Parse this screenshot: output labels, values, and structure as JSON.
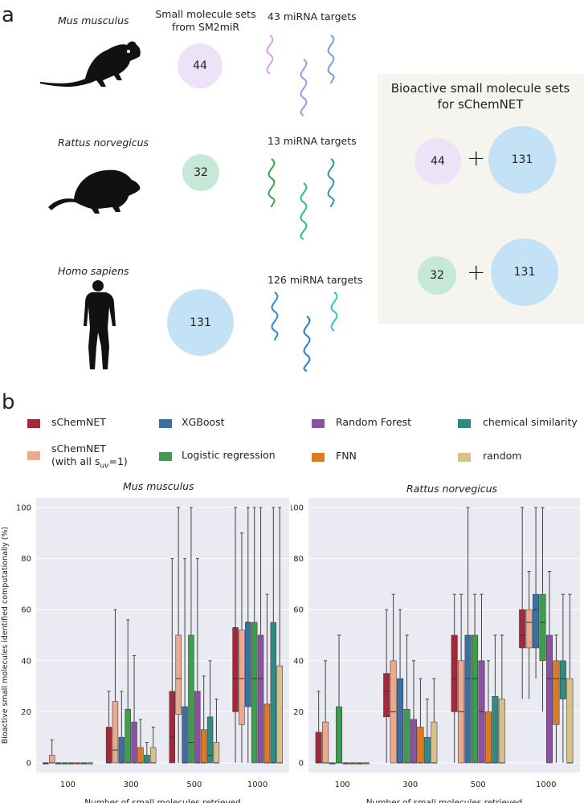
{
  "panel_a": {
    "label": "a",
    "header_sets": "Small molecule sets\nfrom SM2miR",
    "header_sets_line1": "Small molecule sets",
    "header_sets_line2": "from SM2miR",
    "species": [
      {
        "name": "Mus musculus",
        "set_count": "44",
        "targets": "43 miRNA targets",
        "color": "#ece3f8"
      },
      {
        "name": "Rattus norvegicus",
        "set_count": "32",
        "targets": "13 miRNA targets",
        "color": "#c6e8d6"
      },
      {
        "name": "Homo sapiens",
        "set_count": "131",
        "targets": "126 miRNA targets",
        "color": "#c4e2f6"
      }
    ],
    "bioactive": {
      "title_line1": "Bioactive small molecule sets",
      "title_line2": "for sChemNET",
      "rows": [
        {
          "left": "44",
          "plus": "+",
          "right": "131"
        },
        {
          "left": "32",
          "plus": "+",
          "right": "131"
        }
      ]
    }
  },
  "panel_b": {
    "label": "b",
    "legend": [
      {
        "label": "sChemNET",
        "color": "#a3283a"
      },
      {
        "label": "XGBoost",
        "color": "#3b6ea3"
      },
      {
        "label": "Random Forest",
        "color": "#8a52a0"
      },
      {
        "label": "chemical similarity",
        "color": "#2f8a80"
      },
      {
        "label": "sChemNET",
        "sub": "(with all s",
        "subscript": "uv",
        "suffix": "=1)",
        "color": "#eba98e"
      },
      {
        "label": "Logistic regression",
        "color": "#3e9c4e"
      },
      {
        "label": "FNN",
        "color": "#e07a22"
      },
      {
        "label": "random",
        "color": "#d8c08a"
      }
    ]
  },
  "chart_data": [
    {
      "type": "box",
      "title": "Mus musculus",
      "xlabel": "Number of small molecules retrieved",
      "ylabel": "Bioactive small molecules identified computationally (%)",
      "ylim": [
        0,
        100
      ],
      "yticks": [
        "0",
        "20",
        "40",
        "60",
        "80",
        "100"
      ],
      "categories": [
        "100",
        "300",
        "500",
        "1000"
      ],
      "methods": [
        "sChemNET",
        "sChemNET (with all suv=1)",
        "XGBoost",
        "Logistic regression",
        "Random Forest",
        "FNN",
        "chemical similarity",
        "random"
      ],
      "boxes": [
        [
          [
            0,
            0,
            0,
            0,
            0
          ],
          [
            0,
            0,
            0,
            3,
            9
          ],
          [
            0,
            0,
            0,
            0,
            0
          ],
          [
            0,
            0,
            0,
            0,
            0
          ],
          [
            0,
            0,
            0,
            0,
            0
          ],
          [
            0,
            0,
            0,
            0,
            0
          ],
          [
            0,
            0,
            0,
            0,
            0
          ],
          [
            0,
            0,
            0,
            0,
            0
          ]
        ],
        [
          [
            0,
            0,
            0,
            14,
            28
          ],
          [
            0,
            0,
            5,
            24,
            60
          ],
          [
            0,
            0,
            0,
            10,
            28
          ],
          [
            0,
            0,
            0,
            21,
            56
          ],
          [
            0,
            0,
            0,
            16,
            42
          ],
          [
            0,
            0,
            0,
            6,
            17
          ],
          [
            0,
            0,
            0,
            3,
            8
          ],
          [
            0,
            0,
            0,
            6,
            14
          ]
        ],
        [
          [
            0,
            0,
            10,
            28,
            80
          ],
          [
            0,
            19,
            33,
            50,
            100
          ],
          [
            0,
            0,
            0,
            22,
            80
          ],
          [
            0,
            0,
            8,
            50,
            100
          ],
          [
            0,
            0,
            0,
            28,
            80
          ],
          [
            0,
            0,
            0,
            13,
            34
          ],
          [
            0,
            0,
            3,
            18,
            40
          ],
          [
            0,
            0,
            0,
            8,
            25
          ]
        ],
        [
          [
            0,
            20,
            33,
            53,
            100
          ],
          [
            0,
            15,
            33,
            52,
            90
          ],
          [
            0,
            22,
            55,
            55,
            100
          ],
          [
            0,
            0,
            33,
            55,
            100
          ],
          [
            0,
            0,
            33,
            50,
            100
          ],
          [
            0,
            0,
            0,
            23,
            66
          ],
          [
            0,
            0,
            0,
            55,
            100
          ],
          [
            0,
            0,
            0,
            38,
            100
          ]
        ]
      ]
    },
    {
      "type": "box",
      "title": "Rattus norvegicus",
      "xlabel": "Number of small molecules retrieved",
      "ylabel": "Bioactive small molecules identified computationally (%)",
      "ylim": [
        0,
        100
      ],
      "yticks": [
        "0",
        "20",
        "40",
        "60",
        "80",
        "100"
      ],
      "categories": [
        "100",
        "300",
        "500",
        "1000"
      ],
      "methods": [
        "sChemNET",
        "sChemNET (with all suv=1)",
        "XGBoost",
        "Logistic regression",
        "Random Forest",
        "FNN",
        "chemical similarity",
        "random"
      ],
      "boxes": [
        [
          [
            0,
            0,
            0,
            12,
            28
          ],
          [
            0,
            0,
            0,
            16,
            40
          ],
          [
            0,
            0,
            0,
            0,
            0
          ],
          [
            0,
            0,
            0,
            22,
            50
          ],
          [
            0,
            0,
            0,
            0,
            0
          ],
          [
            0,
            0,
            0,
            0,
            0
          ],
          [
            0,
            0,
            0,
            0,
            0
          ],
          [
            0,
            0,
            0,
            0,
            0
          ]
        ],
        [
          [
            0,
            18,
            28,
            35,
            60
          ],
          [
            0,
            0,
            20,
            40,
            66
          ],
          [
            0,
            0,
            0,
            33,
            60
          ],
          [
            0,
            0,
            0,
            21,
            50
          ],
          [
            0,
            0,
            0,
            17,
            40
          ],
          [
            0,
            0,
            0,
            14,
            33
          ],
          [
            0,
            0,
            0,
            10,
            25
          ],
          [
            0,
            0,
            0,
            16,
            33
          ]
        ],
        [
          [
            0,
            20,
            33,
            50,
            66
          ],
          [
            0,
            0,
            20,
            40,
            66
          ],
          [
            0,
            0,
            33,
            50,
            100
          ],
          [
            0,
            0,
            33,
            50,
            66
          ],
          [
            0,
            0,
            20,
            40,
            66
          ],
          [
            0,
            0,
            0,
            20,
            40
          ],
          [
            0,
            0,
            0,
            26,
            50
          ],
          [
            0,
            0,
            0,
            25,
            50
          ]
        ],
        [
          [
            25,
            45,
            50,
            60,
            100
          ],
          [
            25,
            45,
            55,
            60,
            75
          ],
          [
            33,
            45,
            60,
            66,
            100
          ],
          [
            20,
            40,
            55,
            66,
            100
          ],
          [
            0,
            0,
            33,
            50,
            75
          ],
          [
            0,
            15,
            33,
            40,
            50
          ],
          [
            0,
            25,
            33,
            40,
            66
          ],
          [
            0,
            0,
            0,
            33,
            66
          ]
        ]
      ]
    }
  ]
}
